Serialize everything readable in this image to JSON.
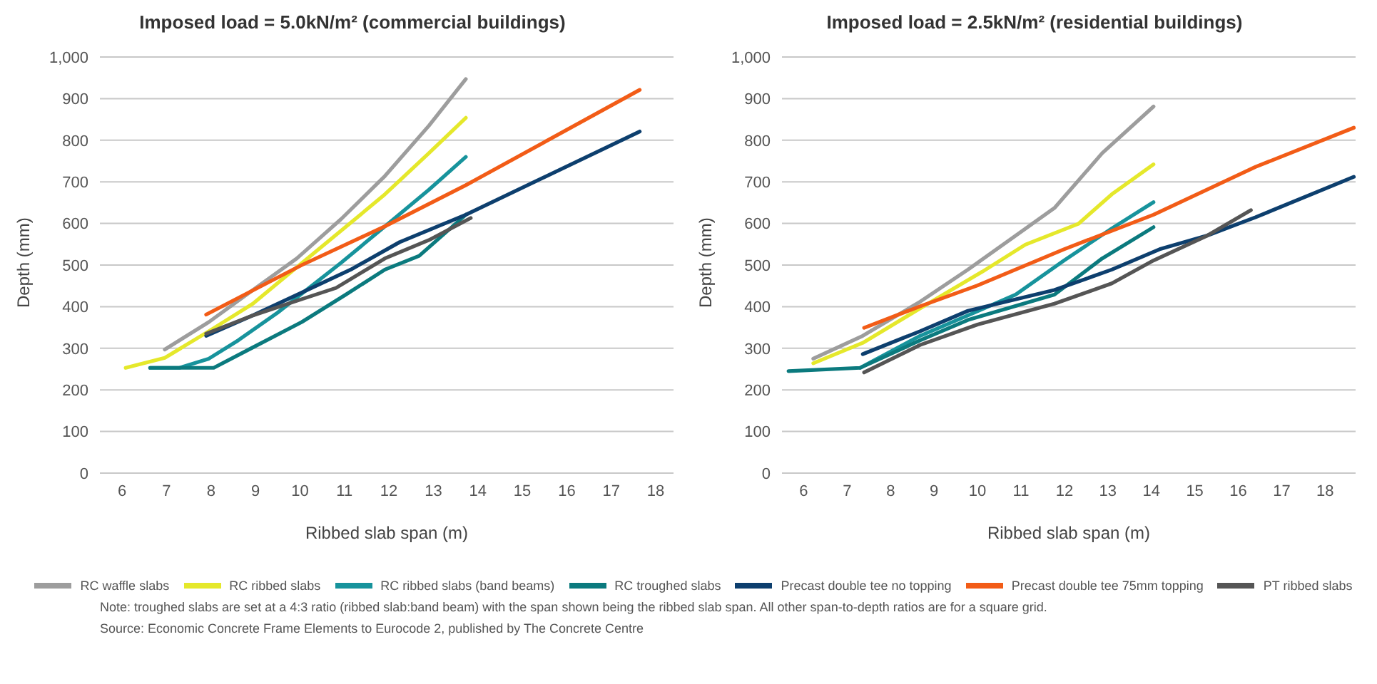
{
  "chart_data": [
    {
      "type": "line",
      "title": "Imposed load = 5.0kN/m² (commercial buildings)",
      "xlabel": "Ribbed slab span (m)",
      "ylabel": "Depth (mm)",
      "xlim": [
        5.5,
        18.4
      ],
      "xticks": [
        6,
        7,
        8,
        9,
        10,
        11,
        12,
        13,
        14,
        15,
        16,
        17,
        18
      ],
      "ylim": [
        0,
        1000
      ],
      "yticks": [
        0,
        100,
        200,
        300,
        400,
        500,
        600,
        700,
        800,
        900,
        {
          "value": 1000,
          "label": "1,000"
        }
      ],
      "grid": "y",
      "legend": "bottom",
      "marker": "none",
      "line_style": "solid",
      "annotations": [
        "Note: troughed slabs are set at a 4:3 ratio (ribbed slab:band beam) with the span shown being the ribbed slab span. All other span-to-depth ratios are for a square grid.",
        "Source: Economic Concrete Frame Elements to Eurocode 2, published by The Concrete Centre"
      ],
      "series": [
        {
          "name": "RC waffle slabs",
          "color": "#9d9d9d",
          "x": [
            6.96,
            7.95,
            8.94,
            9.93,
            10.92,
            11.91,
            12.9,
            13.73
          ],
          "values": [
            297,
            363,
            440,
            516,
            610,
            714,
            835,
            947
          ]
        },
        {
          "name": "RC ribbed slabs",
          "color": "#e5e82b",
          "x": [
            6.08,
            6.96,
            7.95,
            8.94,
            9.93,
            10.92,
            11.91,
            12.9,
            13.73
          ],
          "values": [
            253,
            277,
            341,
            407,
            495,
            582,
            670,
            769,
            854
          ]
        },
        {
          "name": "RC ribbed slabs (band beams)",
          "color": "#17939c",
          "x": [
            6.63,
            7.29,
            7.95,
            8.61,
            9.49,
            10.92,
            11.91,
            12.9,
            13.73
          ],
          "values": [
            253,
            253,
            275,
            319,
            385,
            505,
            593,
            681,
            760
          ]
        },
        {
          "name": "RC troughed slabs",
          "color": "#0b7a7e",
          "x": [
            6.63,
            8.06,
            8.94,
            10.04,
            11.03,
            11.91,
            12.68,
            13.73
          ],
          "values": [
            253,
            253,
            302,
            363,
            429,
            489,
            522,
            621
          ]
        },
        {
          "name": "Precast double tee no topping",
          "color": "#0d3f6e",
          "x": [
            7.89,
            8.94,
            10.04,
            11.14,
            12.24,
            13.73,
            17.64
          ],
          "values": [
            330,
            379,
            434,
            489,
            555,
            621,
            821
          ]
        },
        {
          "name": "Precast double tee 75mm topping",
          "color": "#f25c17",
          "x": [
            7.89,
            10.04,
            11.91,
            13.73,
            17.64
          ],
          "values": [
            381,
            500,
            593,
            692,
            921
          ]
        },
        {
          "name": "PT ribbed slabs",
          "color": "#555555",
          "x": [
            7.89,
            8.94,
            10.04,
            10.81,
            11.91,
            12.9,
            13.84
          ],
          "values": [
            335,
            379,
            418,
            445,
            516,
            560,
            613
          ]
        }
      ]
    },
    {
      "type": "line",
      "title": "Imposed load = 2.5kN/m² (residential buildings)",
      "xlabel": "Ribbed slab span (m)",
      "ylabel": "Depth (mm)",
      "xlim": [
        5.5,
        18.7
      ],
      "xticks": [
        6,
        7,
        8,
        9,
        10,
        11,
        12,
        13,
        14,
        15,
        16,
        17,
        18
      ],
      "ylim": [
        0,
        1000
      ],
      "yticks": [
        0,
        100,
        200,
        300,
        400,
        500,
        600,
        700,
        800,
        900,
        {
          "value": 1000,
          "label": "1,000"
        }
      ],
      "grid": "y",
      "marker": "none",
      "line_style": "solid",
      "series": [
        {
          "color": "#9d9d9d",
          "x": [
            6.22,
            7.36,
            8.68,
            9.78,
            10.88,
            11.77,
            12.87,
            14.05
          ],
          "values": [
            275,
            330,
            412,
            489,
            571,
            637,
            769,
            881
          ]
        },
        {
          "color": "#e5e82b",
          "x": [
            6.22,
            7.36,
            8.68,
            10.11,
            11.1,
            12.32,
            13.09,
            14.05
          ],
          "values": [
            264,
            313,
            396,
            484,
            549,
            599,
            670,
            742
          ]
        },
        {
          "color": "#17939c",
          "x": [
            7.3,
            8.68,
            9.78,
            10.88,
            11.99,
            13.09,
            14.05
          ],
          "values": [
            253,
            330,
            379,
            429,
            511,
            588,
            651
          ]
        },
        {
          "color": "#0b7a7e",
          "x": [
            5.65,
            7.3,
            8.68,
            9.78,
            11.77,
            12.87,
            14.05
          ],
          "values": [
            245,
            253,
            319,
            368,
            429,
            516,
            591
          ]
        },
        {
          "color": "#0d3f6e",
          "x": [
            7.36,
            8.68,
            9.78,
            11.77,
            13.09,
            14.19,
            15.29,
            16.4,
            18.66
          ],
          "values": [
            286,
            341,
            390,
            440,
            489,
            538,
            571,
            615,
            712
          ]
        },
        {
          "color": "#f25c17",
          "x": [
            7.39,
            8.68,
            10.0,
            11.99,
            14.05,
            16.4,
            18.66
          ],
          "values": [
            349,
            401,
            451,
            538,
            621,
            736,
            830
          ]
        },
        {
          "color": "#555555",
          "x": [
            7.39,
            8.68,
            10.0,
            11.77,
            13.09,
            14.05,
            15.29,
            16.29
          ],
          "values": [
            242,
            308,
            357,
            407,
            456,
            511,
            571,
            632
          ]
        }
      ]
    }
  ]
}
